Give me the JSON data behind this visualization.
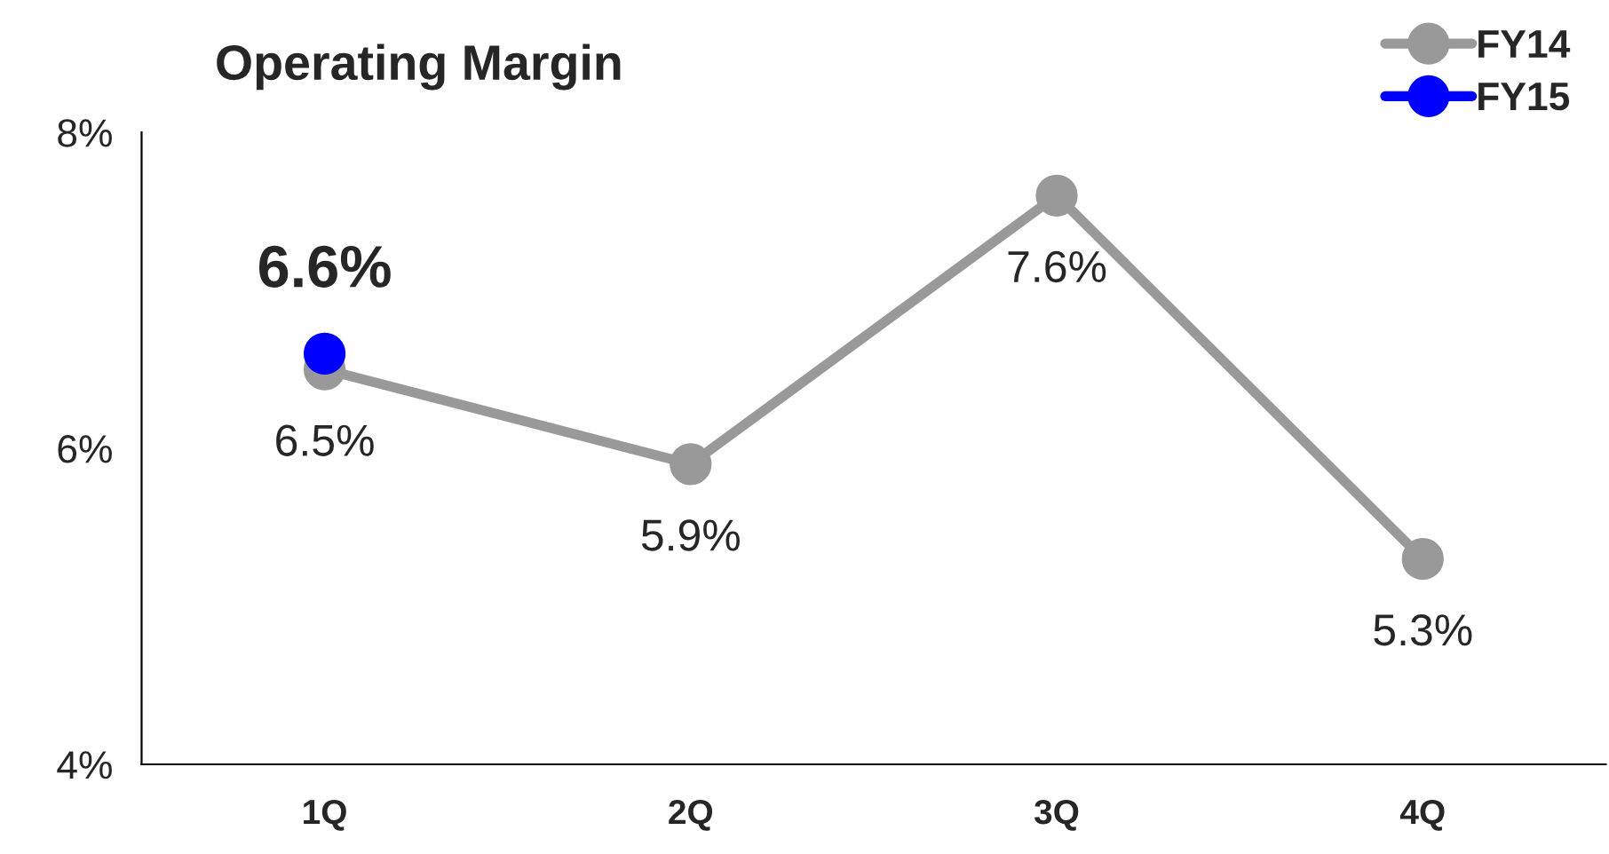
{
  "chart_data": {
    "type": "line",
    "title": "Operating Margin",
    "categories": [
      "1Q",
      "2Q",
      "3Q",
      "4Q"
    ],
    "series": [
      {
        "name": "FY14",
        "color": "#999999",
        "values": [
          6.5,
          5.9,
          7.6,
          5.3
        ],
        "value_labels": [
          "6.5%",
          "5.9%",
          "7.6%",
          "5.3%"
        ]
      },
      {
        "name": "FY15",
        "color": "#0000ff",
        "values": [
          6.6,
          null,
          null,
          null
        ],
        "value_labels": [
          "6.6%",
          null,
          null,
          null
        ]
      }
    ],
    "ylim": [
      4,
      8
    ],
    "yticks": [
      {
        "value": 4,
        "label": "4%"
      },
      {
        "value": 6,
        "label": "6%"
      },
      {
        "value": 8,
        "label": "8%"
      }
    ],
    "grid": false,
    "legend": "top right",
    "marker": "circle",
    "line_style": "solid"
  }
}
